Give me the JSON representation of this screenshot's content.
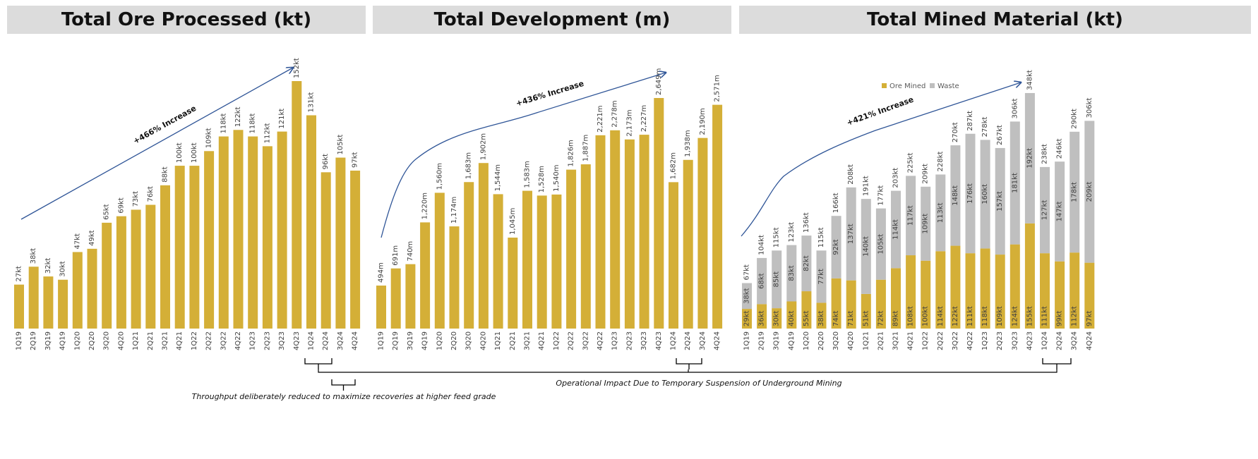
{
  "titles": [
    "Total Ore Processed (kt)",
    "Total Development (m)",
    "Total Mined Material (kt)"
  ],
  "colors": {
    "gold": "#d4af37",
    "waste": "#bfbfbf",
    "arrow": "#2f5597",
    "title_bg": "#dcdcdc"
  },
  "chart_data": [
    {
      "type": "bar",
      "title": "Total Ore Processed (kt)",
      "unit": "kt",
      "categories": [
        "1Q19",
        "2Q19",
        "3Q19",
        "4Q19",
        "1Q20",
        "2Q20",
        "3Q20",
        "4Q20",
        "1Q21",
        "2Q21",
        "3Q21",
        "4Q21",
        "1Q22",
        "2Q22",
        "3Q22",
        "4Q22",
        "1Q23",
        "2Q23",
        "3Q23",
        "4Q23",
        "1Q24",
        "2Q24",
        "3Q24",
        "4Q24"
      ],
      "values": [
        27,
        38,
        32,
        30,
        47,
        49,
        65,
        69,
        73,
        76,
        88,
        100,
        100,
        109,
        118,
        122,
        118,
        112,
        121,
        152,
        131,
        96,
        105,
        97
      ],
      "annotation": "+466% Increase",
      "grid": false
    },
    {
      "type": "bar",
      "title": "Total Development (m)",
      "unit": "m",
      "categories": [
        "1Q19",
        "2Q19",
        "3Q19",
        "4Q19",
        "1Q20",
        "2Q20",
        "3Q20",
        "4Q20",
        "1Q21",
        "2Q21",
        "3Q21",
        "4Q21",
        "1Q22",
        "2Q22",
        "3Q22",
        "4Q22",
        "1Q23",
        "2Q23",
        "3Q23",
        "4Q23",
        "1Q24",
        "2Q24",
        "3Q24",
        "4Q24"
      ],
      "values": [
        494,
        691,
        740,
        1220,
        1560,
        1174,
        1683,
        1902,
        1544,
        1045,
        1583,
        1528,
        1540,
        1826,
        1887,
        2221,
        2278,
        2173,
        2227,
        2649,
        1682,
        1938,
        2190,
        2571
      ],
      "annotation": "+436% Increase",
      "grid": false
    },
    {
      "type": "bar",
      "stacked": true,
      "title": "Total Mined Material (kt)",
      "unit": "kt",
      "categories": [
        "1Q19",
        "2Q19",
        "3Q19",
        "4Q19",
        "1Q20",
        "2Q20",
        "3Q20",
        "4Q20",
        "1Q21",
        "2Q21",
        "3Q21",
        "4Q21",
        "1Q22",
        "2Q22",
        "3Q22",
        "4Q22",
        "1Q23",
        "2Q23",
        "3Q23",
        "4Q23",
        "1Q24",
        "2Q24",
        "3Q24",
        "4Q24"
      ],
      "series": [
        {
          "name": "Ore Mined",
          "color": "#d4af37",
          "values": [
            29,
            36,
            30,
            40,
            55,
            38,
            74,
            71,
            51,
            72,
            89,
            108,
            100,
            114,
            122,
            111,
            118,
            109,
            124,
            155,
            111,
            99,
            112,
            97
          ]
        },
        {
          "name": "Waste",
          "color": "#bfbfbf",
          "values": [
            38,
            68,
            85,
            83,
            82,
            77,
            92,
            137,
            140,
            105,
            114,
            117,
            109,
            113,
            148,
            176,
            160,
            157,
            181,
            192,
            127,
            147,
            178,
            209
          ]
        }
      ],
      "totals": [
        67,
        104,
        115,
        123,
        136,
        115,
        166,
        208,
        191,
        177,
        203,
        225,
        209,
        228,
        270,
        287,
        278,
        267,
        306,
        348,
        238,
        246,
        290,
        306
      ],
      "annotation": "+421% Increase",
      "legend": "top-right",
      "grid": false
    }
  ],
  "notes": {
    "throughput": "Throughput deliberately reduced to maximize recoveries at higher feed grade",
    "operational": "Operational Impact Due to Temporary Suspension of Underground Mining"
  }
}
